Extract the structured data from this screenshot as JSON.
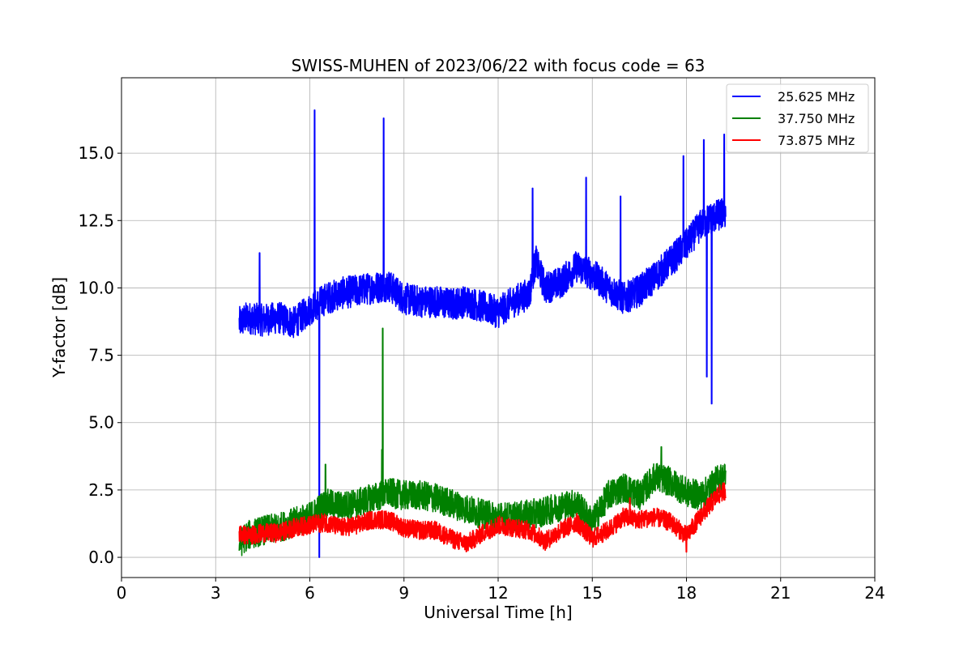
{
  "chart_data": {
    "type": "line",
    "title": "SWISS-MUHEN of 2023/06/22 with focus code = 63",
    "xlabel": "Universal Time [h]",
    "ylabel": "Y-factor [dB]",
    "xlim": [
      0,
      24
    ],
    "ylim": [
      -0.75,
      17.8
    ],
    "xticks": [
      0,
      3,
      6,
      9,
      12,
      15,
      18,
      21,
      24
    ],
    "xtick_labels": [
      "0",
      "3",
      "6",
      "9",
      "12",
      "15",
      "18",
      "21",
      "24"
    ],
    "yticks": [
      0,
      2.5,
      5,
      7.5,
      10,
      12.5,
      15
    ],
    "ytick_labels": [
      "0.0",
      "2.5",
      "5.0",
      "7.5",
      "10.0",
      "12.5",
      "15.0"
    ],
    "grid": true,
    "legend_position": "top-right",
    "series": [
      {
        "name": "25.625 MHz",
        "color": "#0000ff",
        "noise": 0.6,
        "x": [
          3.75,
          4.0,
          4.5,
          5.0,
          5.5,
          6.0,
          6.5,
          7.0,
          7.5,
          8.0,
          8.5,
          9.0,
          9.5,
          10.0,
          10.5,
          11.0,
          11.5,
          12.0,
          12.5,
          13.0,
          13.2,
          13.5,
          14.0,
          14.5,
          15.0,
          15.5,
          16.0,
          16.5,
          17.0,
          17.5,
          18.0,
          18.5,
          18.8,
          19.25
        ],
        "y": [
          8.7,
          8.9,
          8.8,
          8.9,
          8.7,
          9.2,
          9.6,
          9.8,
          9.9,
          10.0,
          10.1,
          9.6,
          9.5,
          9.5,
          9.4,
          9.5,
          9.3,
          9.1,
          9.5,
          9.8,
          11.0,
          10.0,
          10.2,
          10.8,
          10.5,
          10.0,
          9.6,
          9.9,
          10.4,
          11.0,
          11.6,
          12.4,
          12.6,
          12.8
        ],
        "spikes": [
          [
            4.4,
            11.3
          ],
          [
            6.15,
            16.6
          ],
          [
            6.3,
            0.0
          ],
          [
            8.35,
            16.3
          ],
          [
            13.1,
            13.7
          ],
          [
            14.8,
            14.1
          ],
          [
            15.9,
            13.4
          ],
          [
            17.9,
            14.9
          ],
          [
            18.55,
            15.5
          ],
          [
            18.65,
            6.7
          ],
          [
            18.8,
            5.7
          ],
          [
            19.2,
            15.7
          ]
        ]
      },
      {
        "name": "37.750 MHz",
        "color": "#008000",
        "noise": 0.55,
        "x": [
          3.75,
          4.0,
          4.5,
          5.0,
          5.5,
          6.0,
          6.5,
          7.0,
          7.5,
          8.0,
          8.5,
          9.0,
          9.5,
          10.0,
          10.5,
          11.0,
          11.5,
          12.0,
          12.5,
          13.0,
          13.5,
          14.0,
          14.5,
          15.0,
          15.5,
          16.0,
          16.5,
          17.0,
          17.5,
          18.0,
          18.5,
          19.0,
          19.25
        ],
        "y": [
          0.5,
          0.8,
          1.0,
          1.1,
          1.3,
          1.5,
          2.0,
          1.9,
          2.0,
          2.2,
          2.4,
          2.3,
          2.3,
          2.2,
          2.0,
          1.8,
          1.6,
          1.5,
          1.5,
          1.6,
          1.7,
          1.9,
          2.0,
          1.3,
          2.3,
          2.6,
          2.3,
          3.0,
          2.8,
          2.4,
          2.3,
          2.9,
          3.0
        ],
        "spikes": [
          [
            6.5,
            3.45
          ],
          [
            8.32,
            8.5
          ],
          [
            8.3,
            4.0
          ],
          [
            17.2,
            4.1
          ]
        ]
      },
      {
        "name": "73.875 MHz",
        "color": "#ff0000",
        "noise": 0.35,
        "x": [
          3.75,
          4.0,
          4.5,
          5.0,
          5.5,
          6.0,
          6.5,
          7.0,
          7.5,
          8.0,
          8.5,
          9.0,
          9.5,
          10.0,
          10.5,
          11.0,
          11.5,
          12.0,
          12.5,
          13.0,
          13.5,
          14.0,
          14.5,
          15.0,
          15.5,
          16.0,
          16.5,
          17.0,
          17.5,
          18.0,
          18.5,
          19.0,
          19.25
        ],
        "y": [
          0.9,
          0.8,
          0.9,
          0.9,
          1.1,
          1.2,
          1.3,
          1.1,
          1.2,
          1.4,
          1.4,
          1.1,
          1.0,
          1.0,
          0.7,
          0.5,
          0.9,
          1.2,
          1.1,
          1.0,
          0.6,
          1.0,
          1.3,
          0.7,
          1.0,
          1.5,
          1.4,
          1.5,
          1.3,
          0.8,
          1.6,
          2.3,
          2.5
        ],
        "spikes": [
          [
            16.2,
            2.2
          ],
          [
            18.0,
            0.2
          ]
        ]
      }
    ]
  }
}
